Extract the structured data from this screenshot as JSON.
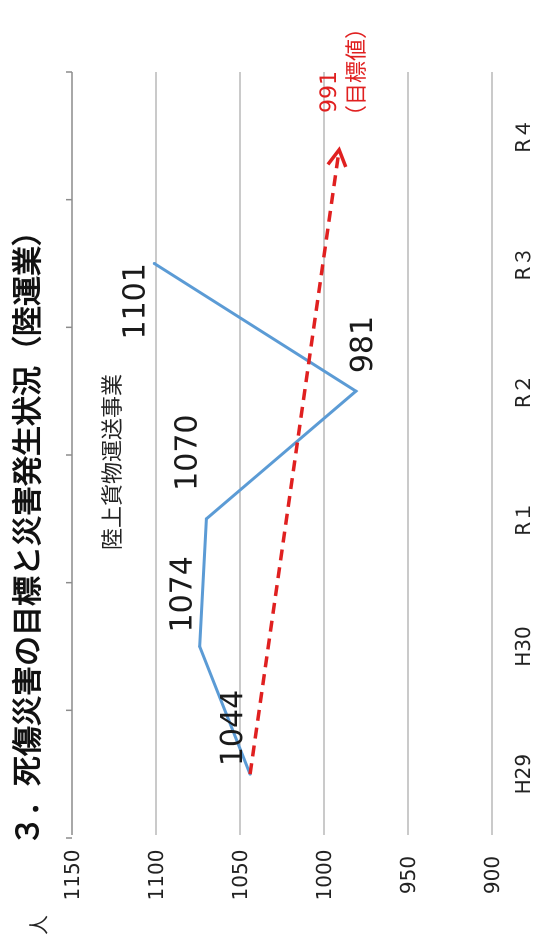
{
  "chart_data": {
    "type": "line",
    "title": "３．死傷災害の目標と災害発生状況（陸運業）",
    "ylabel": "人",
    "categories": [
      "H29",
      "H30",
      "R１",
      "R２",
      "R３",
      "R４"
    ],
    "ylim": [
      900,
      1150
    ],
    "yticks": [
      "900",
      "950",
      "1000",
      "1050",
      "1100",
      "1150"
    ],
    "grid": true,
    "series": [
      {
        "name": "陸上貨物運送事業",
        "color": "#5b9bd5",
        "values": [
          1044,
          1074,
          1070,
          981,
          1101,
          null
        ],
        "labels": [
          "1044",
          "1074",
          "1070",
          "981",
          "1101",
          ""
        ]
      }
    ],
    "target": {
      "color": "#e02020",
      "from": {
        "category": "H29",
        "value": 1044
      },
      "to": {
        "category": "R４",
        "value": 991
      },
      "value_label": "991",
      "note": "（目標値）"
    }
  }
}
